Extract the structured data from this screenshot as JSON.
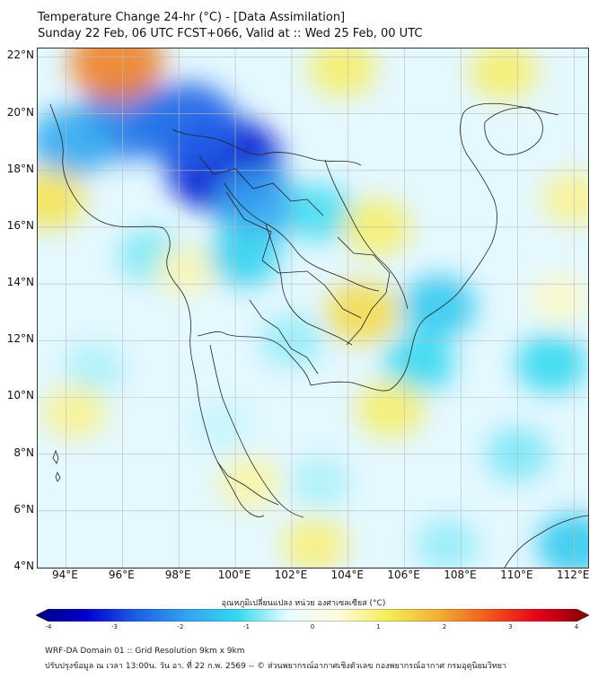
{
  "title": {
    "line1": "Temperature Change 24-hr (°C) - [Data Assimilation]",
    "line2": "Sunday 22 Feb, 06 UTC FCST+066, Valid at :: Wed 25 Feb, 00 UTC"
  },
  "map": {
    "lat_labels": [
      "22°N",
      "20°N",
      "18°N",
      "16°N",
      "14°N",
      "12°N",
      "10°N",
      "8°N",
      "6°N",
      "4°N"
    ],
    "lon_labels": [
      "94°E",
      "96°E",
      "98°E",
      "100°E",
      "102°E",
      "104°E",
      "106°E",
      "108°E",
      "110°E",
      "112°E"
    ],
    "lat_range": [
      4,
      22.3
    ],
    "lon_range": [
      93,
      112.5
    ],
    "blobs": [
      {
        "lon": 99.6,
        "lat": 18.2,
        "value": -3.2
      },
      {
        "lon": 98.3,
        "lat": 19.6,
        "value": -2.5
      },
      {
        "lon": 96.2,
        "lat": 19.8,
        "value": -2.3
      },
      {
        "lon": 100.8,
        "lat": 16.8,
        "value": -1.8
      },
      {
        "lon": 94.2,
        "lat": 19.0,
        "value": -1.7
      },
      {
        "lon": 100.3,
        "lat": 15.0,
        "value": -1.2
      },
      {
        "lon": 103.0,
        "lat": 16.5,
        "value": -1.0
      },
      {
        "lon": 107.2,
        "lat": 13.2,
        "value": -1.3
      },
      {
        "lon": 106.5,
        "lat": 11.2,
        "value": -1.1
      },
      {
        "lon": 111.2,
        "lat": 11.2,
        "value": -1.1
      },
      {
        "lon": 112.0,
        "lat": 4.8,
        "value": -1.3
      },
      {
        "lon": 110.0,
        "lat": 8.0,
        "value": -0.8
      },
      {
        "lon": 102.0,
        "lat": 12.0,
        "value": -0.7
      },
      {
        "lon": 97.0,
        "lat": 15.0,
        "value": -0.8
      },
      {
        "lon": 95.0,
        "lat": 11.0,
        "value": -0.6
      },
      {
        "lon": 99.5,
        "lat": 9.0,
        "value": -0.5
      },
      {
        "lon": 103.0,
        "lat": 7.0,
        "value": -0.6
      },
      {
        "lon": 107.5,
        "lat": 4.8,
        "value": -0.7
      },
      {
        "lon": 95.8,
        "lat": 21.8,
        "value": 2.2
      },
      {
        "lon": 93.4,
        "lat": 17.0,
        "value": 1.2
      },
      {
        "lon": 104.5,
        "lat": 13.0,
        "value": 1.3
      },
      {
        "lon": 105.0,
        "lat": 16.0,
        "value": 1.0
      },
      {
        "lon": 103.8,
        "lat": 21.6,
        "value": 1.0
      },
      {
        "lon": 109.5,
        "lat": 21.5,
        "value": 1.0
      },
      {
        "lon": 112.0,
        "lat": 17.0,
        "value": 0.8
      },
      {
        "lon": 105.5,
        "lat": 9.6,
        "value": 1.0
      },
      {
        "lon": 102.8,
        "lat": 4.8,
        "value": 0.9
      },
      {
        "lon": 94.3,
        "lat": 9.5,
        "value": 0.8
      },
      {
        "lon": 100.5,
        "lat": 7.0,
        "value": 0.7
      },
      {
        "lon": 111.5,
        "lat": 13.5,
        "value": 0.5
      },
      {
        "lon": 98.2,
        "lat": 14.5,
        "value": 0.6
      }
    ]
  },
  "colorbar": {
    "title": "อุณหภูมิเปลี่ยนแปลง หน่วย องศาเซลเซียส (°C)",
    "ticks": [
      "-4",
      "-3",
      "-2",
      "-1",
      "0",
      "1",
      "2",
      "3",
      "4"
    ],
    "range": [
      -4,
      4
    ],
    "colors": [
      "#000080",
      "#0000cd",
      "#1e5fe6",
      "#33a2ef",
      "#33d9f0",
      "#e6fcff",
      "#fffbe0",
      "#f5ec5a",
      "#f2b035",
      "#f0581a",
      "#e6001b",
      "#800000"
    ]
  },
  "footer": {
    "line1": "WRF-DA Domain 01 :: Grid Resolution 9km x 9km",
    "line2": "ปรับปรุงข้อมูล ณ เวลา 13:00น. วัน อา. ที่ 22 ก.พ. 2569 -- © ส่วนพยากรณ์อากาศเชิงตัวเลข กองพยากรณ์อากาศ กรมอุตุนิยมวิทยา"
  }
}
